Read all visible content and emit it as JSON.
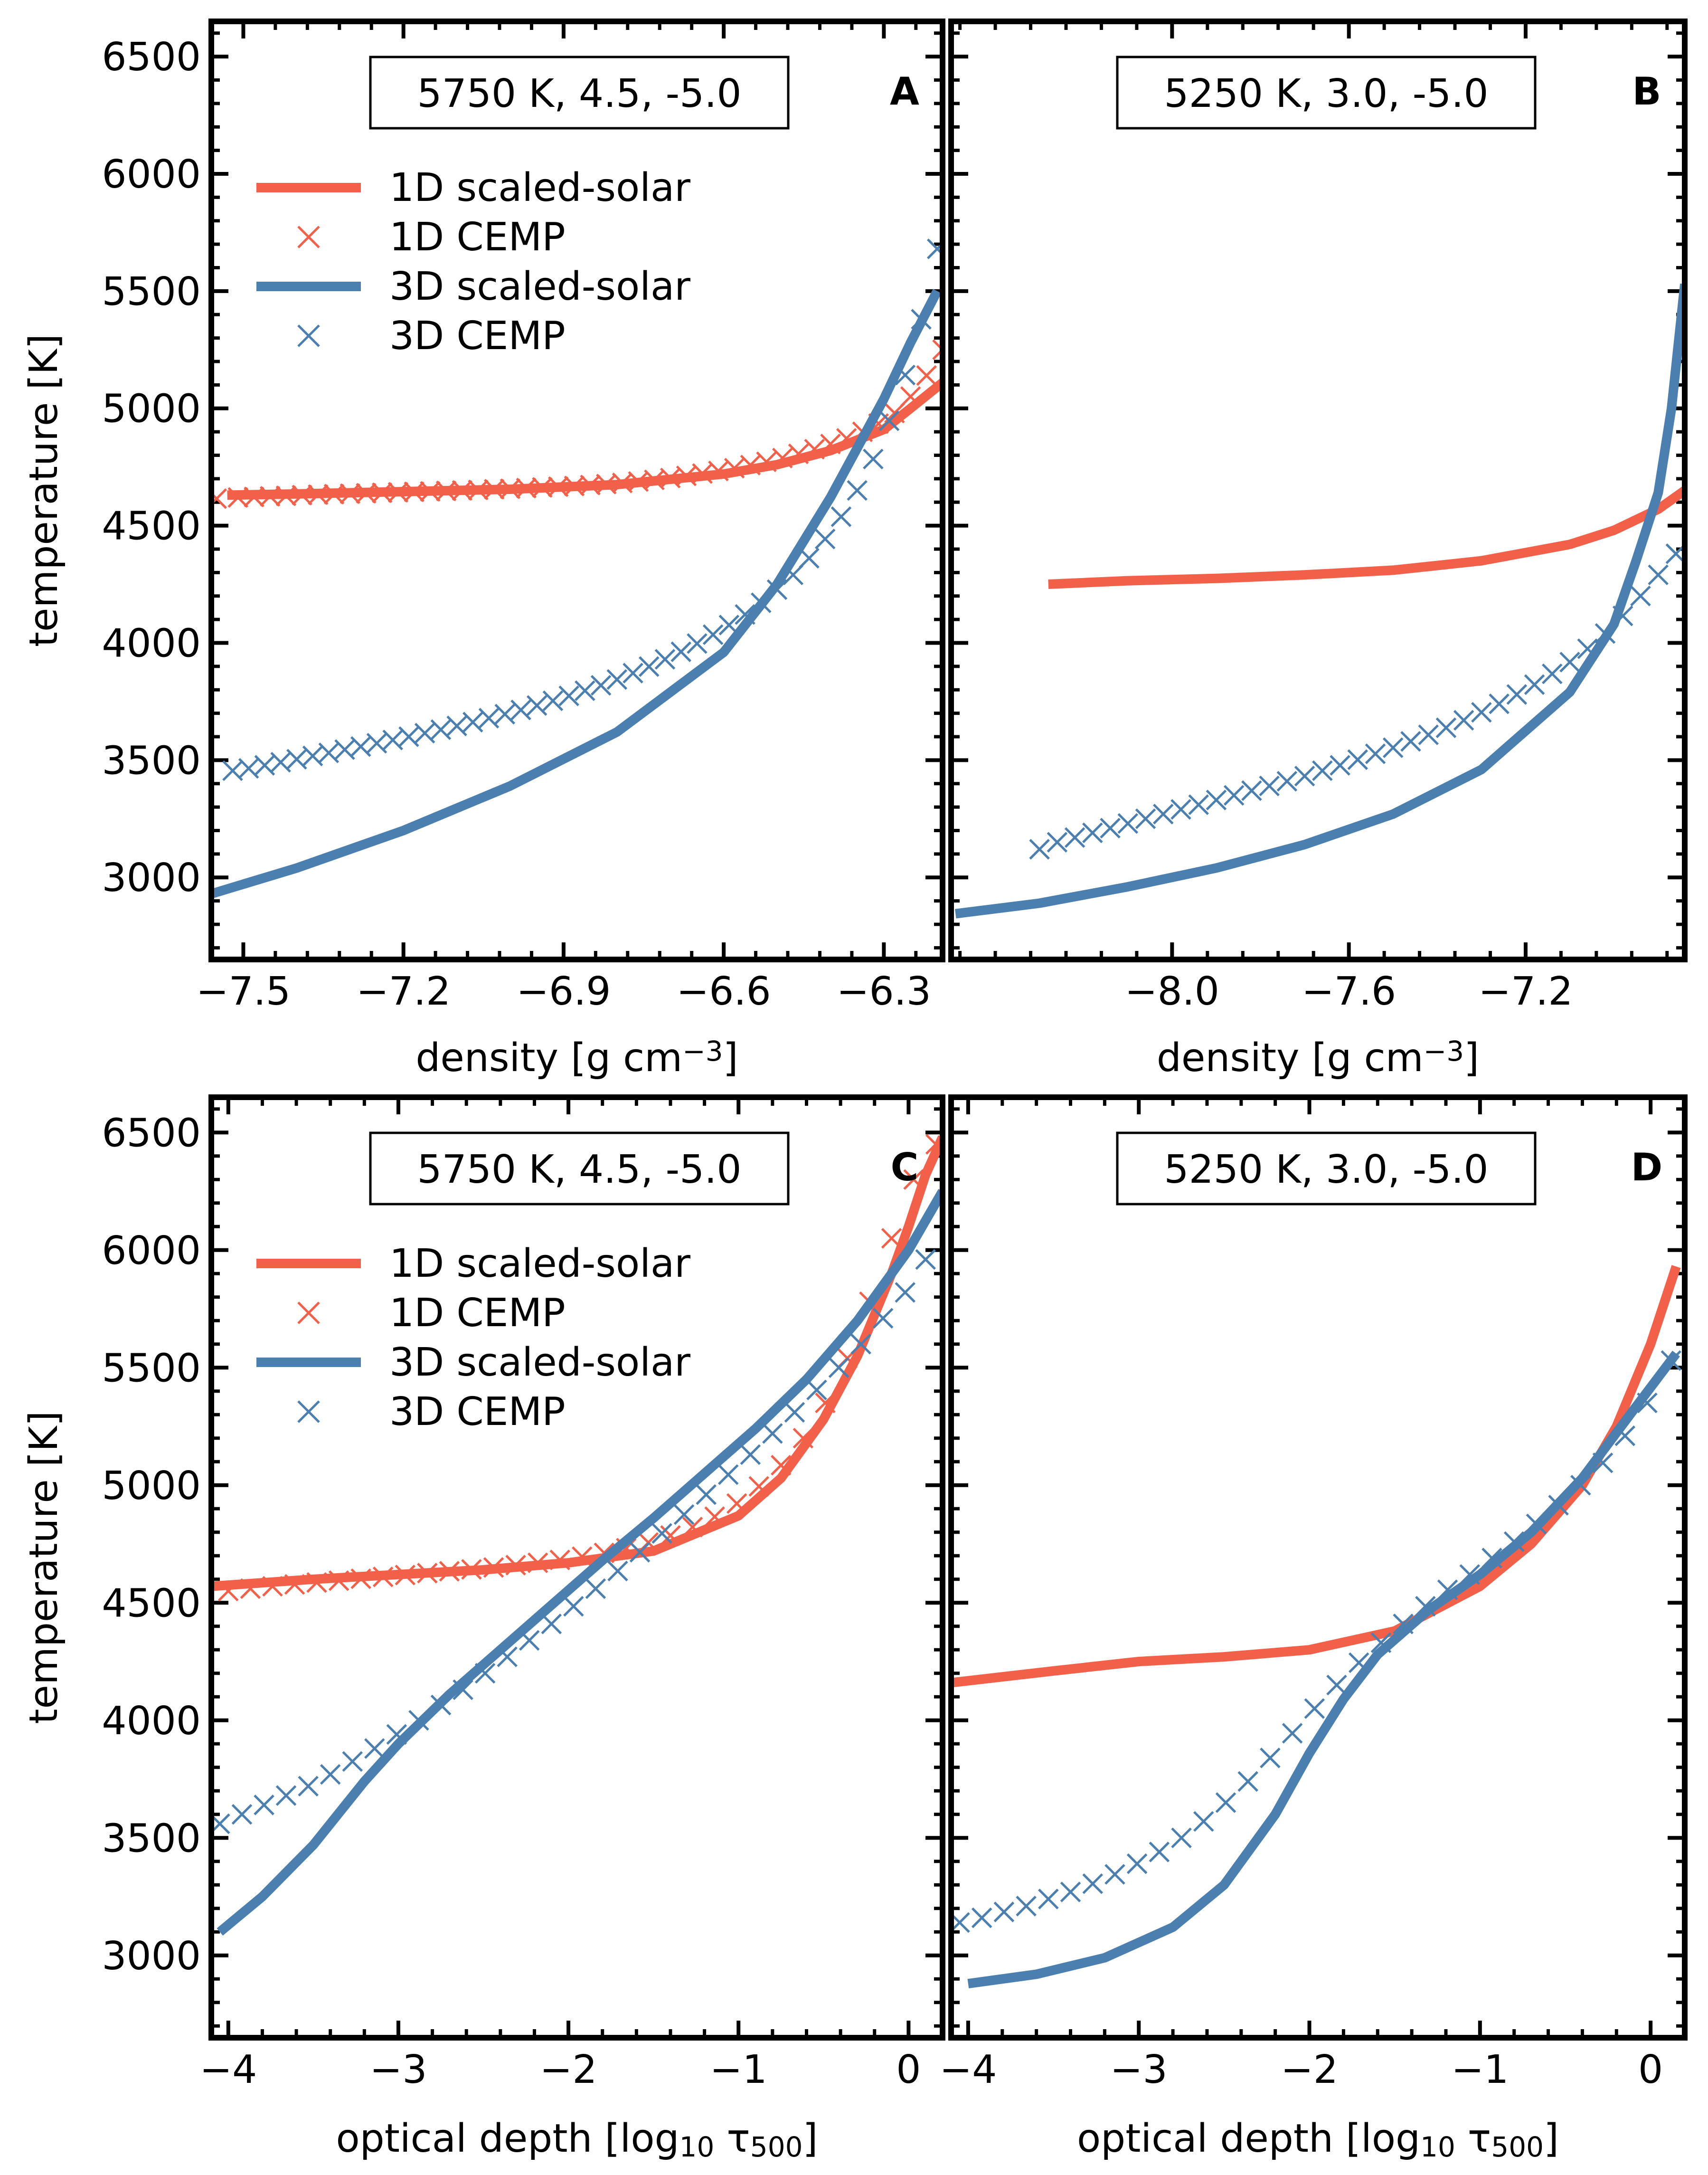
{
  "colors": {
    "one_d": "#f2604a",
    "three_d": "#4a7fb0",
    "axes": "#000000",
    "background": "#ffffff"
  },
  "chart_data": [
    {
      "panel_id": "A",
      "type": "line",
      "box_label": "5750 K, 4.5, -5.0",
      "panel_letter": "A",
      "xlabel": "density [g cm$^{-3}$]",
      "xlabel_parts": [
        "density [g cm",
        "−3",
        "]"
      ],
      "ylabel": "temperature [K]",
      "xlim": [
        -7.56,
        -6.19
      ],
      "ylim": [
        2650,
        6650
      ],
      "xticks": [
        -7.5,
        -7.2,
        -6.9,
        -6.6,
        -6.3
      ],
      "xtick_labels": [
        "−7.5",
        "−7.2",
        "−6.9",
        "−6.6",
        "−6.3"
      ],
      "yticks": [
        3000,
        3500,
        4000,
        4500,
        5000,
        5500,
        6000,
        6500
      ],
      "ytick_labels": [
        "3000",
        "3500",
        "4000",
        "4500",
        "5000",
        "5500",
        "6000",
        "6500"
      ],
      "legend": {
        "position": "upper-left",
        "entries": [
          "1D scaled-solar",
          "1D CEMP",
          "3D scaled-solar",
          "3D CEMP"
        ]
      },
      "series": [
        {
          "name": "1D scaled-solar",
          "style": "line",
          "color": "one_d",
          "x": [
            -7.53,
            -7.4,
            -7.2,
            -7.0,
            -6.8,
            -6.6,
            -6.5,
            -6.4,
            -6.3,
            -6.25,
            -6.19
          ],
          "y": [
            4630,
            4635,
            4645,
            4655,
            4675,
            4720,
            4760,
            4820,
            4910,
            5000,
            5110
          ]
        },
        {
          "name": "1D CEMP",
          "style": "marker",
          "color": "one_d",
          "x": [
            -7.55,
            -7.51,
            -7.48,
            -7.45,
            -7.42,
            -7.39,
            -7.36,
            -7.33,
            -7.3,
            -7.27,
            -7.24,
            -7.21,
            -7.18,
            -7.15,
            -7.12,
            -7.09,
            -7.06,
            -7.03,
            -7.0,
            -6.97,
            -6.94,
            -6.91,
            -6.88,
            -6.85,
            -6.82,
            -6.79,
            -6.76,
            -6.73,
            -6.7,
            -6.67,
            -6.64,
            -6.61,
            -6.58,
            -6.55,
            -6.52,
            -6.49,
            -6.46,
            -6.43,
            -6.4,
            -6.37,
            -6.34,
            -6.31,
            -6.28,
            -6.25,
            -6.22,
            -6.19
          ],
          "y": [
            4615,
            4620,
            4622,
            4625,
            4627,
            4630,
            4632,
            4634,
            4636,
            4638,
            4640,
            4642,
            4644,
            4646,
            4648,
            4650,
            4652,
            4655,
            4657,
            4660,
            4663,
            4666,
            4669,
            4673,
            4677,
            4682,
            4688,
            4695,
            4703,
            4712,
            4722,
            4733,
            4745,
            4758,
            4772,
            4788,
            4806,
            4826,
            4848,
            4872,
            4900,
            4935,
            4980,
            5050,
            5140,
            5250
          ]
        },
        {
          "name": "3D scaled-solar",
          "style": "line",
          "color": "three_d",
          "x": [
            -7.56,
            -7.4,
            -7.2,
            -7.0,
            -6.8,
            -6.6,
            -6.5,
            -6.4,
            -6.3,
            -6.25,
            -6.2
          ],
          "y": [
            2930,
            3040,
            3200,
            3390,
            3620,
            3960,
            4250,
            4620,
            5040,
            5280,
            5500
          ]
        },
        {
          "name": "3D CEMP",
          "style": "marker",
          "color": "three_d",
          "x": [
            -7.52,
            -7.49,
            -7.46,
            -7.43,
            -7.4,
            -7.37,
            -7.34,
            -7.31,
            -7.28,
            -7.25,
            -7.22,
            -7.19,
            -7.16,
            -7.13,
            -7.1,
            -7.07,
            -7.04,
            -7.01,
            -6.98,
            -6.95,
            -6.92,
            -6.89,
            -6.86,
            -6.83,
            -6.8,
            -6.77,
            -6.74,
            -6.71,
            -6.68,
            -6.65,
            -6.62,
            -6.59,
            -6.56,
            -6.53,
            -6.5,
            -6.47,
            -6.44,
            -6.41,
            -6.38,
            -6.35,
            -6.32,
            -6.29,
            -6.26,
            -6.23,
            -6.2
          ],
          "y": [
            3455,
            3465,
            3478,
            3491,
            3504,
            3518,
            3531,
            3545,
            3558,
            3572,
            3586,
            3600,
            3615,
            3630,
            3646,
            3662,
            3679,
            3696,
            3714,
            3733,
            3753,
            3774,
            3796,
            3819,
            3844,
            3871,
            3899,
            3930,
            3962,
            3997,
            4035,
            4076,
            4121,
            4171,
            4227,
            4290,
            4361,
            4443,
            4538,
            4650,
            4784,
            4947,
            5142,
            5380,
            5680
          ]
        }
      ]
    },
    {
      "panel_id": "B",
      "type": "line",
      "box_label": "5250 K, 3.0, -5.0",
      "panel_letter": "B",
      "xlabel": "density [g cm$^{-3}$]",
      "xlabel_parts": [
        "density [g cm",
        "−3",
        "]"
      ],
      "ylabel": "",
      "xlim": [
        -8.5,
        -6.84
      ],
      "ylim": [
        2650,
        6650
      ],
      "xticks": [
        -8.0,
        -7.6,
        -7.2
      ],
      "xtick_labels": [
        "−8.0",
        "−7.6",
        "−7.2"
      ],
      "yticks": [
        3000,
        3500,
        4000,
        4500,
        5000,
        5500,
        6000,
        6500
      ],
      "ytick_labels": [],
      "series": [
        {
          "name": "1D scaled-solar",
          "style": "line",
          "color": "one_d",
          "x": [
            -8.28,
            -8.1,
            -7.9,
            -7.7,
            -7.5,
            -7.3,
            -7.1,
            -7.0,
            -6.9,
            -6.84
          ],
          "y": [
            4250,
            4265,
            4275,
            4290,
            4310,
            4350,
            4420,
            4480,
            4570,
            4650
          ]
        },
        {
          "name": "1D CEMP",
          "style": "hidden",
          "color": "one_d",
          "x": [],
          "y": []
        },
        {
          "name": "3D scaled-solar",
          "style": "line",
          "color": "three_d",
          "x": [
            -8.49,
            -8.3,
            -8.1,
            -7.9,
            -7.7,
            -7.5,
            -7.3,
            -7.1,
            -7.0,
            -6.95,
            -6.9,
            -6.87,
            -6.84
          ],
          "y": [
            2845,
            2890,
            2960,
            3040,
            3140,
            3270,
            3460,
            3790,
            4080,
            4350,
            4640,
            5000,
            5530
          ]
        },
        {
          "name": "3D CEMP",
          "style": "marker",
          "color": "three_d",
          "x": [
            -8.3,
            -8.26,
            -8.22,
            -8.18,
            -8.14,
            -8.1,
            -8.06,
            -8.02,
            -7.98,
            -7.94,
            -7.9,
            -7.86,
            -7.82,
            -7.78,
            -7.74,
            -7.7,
            -7.66,
            -7.62,
            -7.58,
            -7.54,
            -7.5,
            -7.46,
            -7.42,
            -7.38,
            -7.34,
            -7.3,
            -7.26,
            -7.22,
            -7.18,
            -7.14,
            -7.1,
            -7.06,
            -7.02,
            -6.98,
            -6.94,
            -6.9,
            -6.86
          ],
          "y": [
            3120,
            3150,
            3170,
            3190,
            3210,
            3230,
            3250,
            3270,
            3290,
            3310,
            3330,
            3350,
            3370,
            3390,
            3410,
            3432,
            3455,
            3478,
            3502,
            3527,
            3553,
            3580,
            3608,
            3638,
            3670,
            3704,
            3740,
            3780,
            3822,
            3868,
            3918,
            3975,
            4040,
            4115,
            4200,
            4290,
            4380
          ]
        }
      ]
    },
    {
      "panel_id": "C",
      "type": "line",
      "box_label": "5750 K, 4.5, -5.0",
      "panel_letter": "C",
      "xlabel": "optical depth [log$_{10}$ τ$_{500}$]",
      "xlabel_parts": [
        "optical depth [log",
        "10",
        " τ",
        "500",
        "]"
      ],
      "ylabel": "temperature [K]",
      "xlim": [
        -4.1,
        0.2
      ],
      "ylim": [
        2650,
        6650
      ],
      "xticks": [
        -4,
        -3,
        -2,
        -1,
        0
      ],
      "xtick_labels": [
        "−4",
        "−3",
        "−2",
        "−1",
        "0"
      ],
      "yticks": [
        3000,
        3500,
        4000,
        4500,
        5000,
        5500,
        6000,
        6500
      ],
      "ytick_labels": [
        "3000",
        "3500",
        "4000",
        "4500",
        "5000",
        "5500",
        "6000",
        "6500"
      ],
      "legend": {
        "position": "upper-left",
        "entries": [
          "1D scaled-solar",
          "1D CEMP",
          "3D scaled-solar",
          "3D CEMP"
        ]
      },
      "series": [
        {
          "name": "1D scaled-solar",
          "style": "line",
          "color": "one_d",
          "x": [
            -4.1,
            -3.5,
            -3.0,
            -2.5,
            -2.0,
            -1.5,
            -1.0,
            -0.75,
            -0.5,
            -0.3,
            -0.1,
            0.0,
            0.1,
            0.2
          ],
          "y": [
            4570,
            4600,
            4620,
            4640,
            4670,
            4720,
            4870,
            5030,
            5280,
            5550,
            5900,
            6100,
            6320,
            6480
          ]
        },
        {
          "name": "1D CEMP",
          "style": "marker",
          "color": "one_d",
          "x": [
            -4.0,
            -3.87,
            -3.74,
            -3.61,
            -3.48,
            -3.35,
            -3.22,
            -3.09,
            -2.96,
            -2.83,
            -2.7,
            -2.57,
            -2.44,
            -2.31,
            -2.18,
            -2.05,
            -1.92,
            -1.79,
            -1.66,
            -1.53,
            -1.4,
            -1.27,
            -1.14,
            -1.01,
            -0.88,
            -0.75,
            -0.62,
            -0.49,
            -0.36,
            -0.23,
            -0.1,
            0.03,
            0.16
          ],
          "y": [
            4550,
            4560,
            4570,
            4578,
            4586,
            4594,
            4602,
            4610,
            4618,
            4626,
            4634,
            4642,
            4650,
            4660,
            4670,
            4682,
            4696,
            4712,
            4732,
            4756,
            4786,
            4822,
            4866,
            4922,
            4995,
            5085,
            5200,
            5350,
            5540,
            5780,
            6050,
            6300,
            6450
          ]
        },
        {
          "name": "3D scaled-solar",
          "style": "line",
          "color": "three_d",
          "x": [
            -4.05,
            -3.8,
            -3.5,
            -3.2,
            -3.0,
            -2.7,
            -2.4,
            -2.1,
            -1.8,
            -1.5,
            -1.2,
            -0.9,
            -0.6,
            -0.3,
            0.0,
            0.2
          ],
          "y": [
            3100,
            3250,
            3470,
            3740,
            3900,
            4110,
            4300,
            4490,
            4680,
            4860,
            5050,
            5240,
            5450,
            5700,
            6000,
            6250
          ]
        },
        {
          "name": "3D CEMP",
          "style": "marker",
          "color": "three_d",
          "x": [
            -4.05,
            -3.92,
            -3.79,
            -3.66,
            -3.53,
            -3.4,
            -3.27,
            -3.14,
            -3.01,
            -2.88,
            -2.75,
            -2.62,
            -2.49,
            -2.36,
            -2.23,
            -2.1,
            -1.97,
            -1.84,
            -1.71,
            -1.58,
            -1.45,
            -1.32,
            -1.19,
            -1.06,
            -0.93,
            -0.8,
            -0.67,
            -0.54,
            -0.41,
            -0.28,
            -0.15,
            -0.02,
            0.1
          ],
          "y": [
            3560,
            3600,
            3640,
            3680,
            3720,
            3770,
            3825,
            3880,
            3940,
            4000,
            4065,
            4130,
            4200,
            4270,
            4340,
            4410,
            4485,
            4560,
            4635,
            4715,
            4795,
            4875,
            4960,
            5045,
            5130,
            5220,
            5310,
            5405,
            5500,
            5600,
            5710,
            5820,
            5960
          ]
        }
      ]
    },
    {
      "panel_id": "D",
      "type": "line",
      "box_label": "5250 K, 3.0, -5.0",
      "panel_letter": "D",
      "xlabel": "optical depth [log$_{10}$ τ$_{500}$]",
      "xlabel_parts": [
        "optical depth [log",
        "10",
        " τ",
        "500",
        "]"
      ],
      "ylabel": "",
      "xlim": [
        -4.1,
        0.2
      ],
      "ylim": [
        2650,
        6650
      ],
      "xticks": [
        -4,
        -3,
        -2,
        -1,
        0
      ],
      "xtick_labels": [
        "−4",
        "−3",
        "−2",
        "−1",
        "0"
      ],
      "yticks": [
        3000,
        3500,
        4000,
        4500,
        5000,
        5500,
        6000,
        6500
      ],
      "ytick_labels": [],
      "series": [
        {
          "name": "1D scaled-solar",
          "style": "line",
          "color": "one_d",
          "x": [
            -4.1,
            -3.5,
            -3.0,
            -2.5,
            -2.0,
            -1.5,
            -1.0,
            -0.7,
            -0.4,
            -0.2,
            0.0,
            0.15
          ],
          "y": [
            4160,
            4210,
            4250,
            4270,
            4300,
            4380,
            4570,
            4750,
            5000,
            5250,
            5600,
            5930
          ]
        },
        {
          "name": "1D CEMP",
          "style": "hidden",
          "color": "one_d",
          "x": [],
          "y": []
        },
        {
          "name": "3D scaled-solar",
          "style": "line",
          "color": "three_d",
          "x": [
            -4.0,
            -3.6,
            -3.2,
            -2.8,
            -2.5,
            -2.2,
            -2.0,
            -1.8,
            -1.6,
            -1.3,
            -1.0,
            -0.7,
            -0.4,
            -0.1,
            0.15
          ],
          "y": [
            2880,
            2920,
            2990,
            3120,
            3300,
            3600,
            3860,
            4090,
            4280,
            4470,
            4620,
            4800,
            5030,
            5320,
            5560
          ]
        },
        {
          "name": "3D CEMP",
          "style": "marker",
          "color": "three_d",
          "x": [
            -4.05,
            -3.92,
            -3.79,
            -3.66,
            -3.53,
            -3.4,
            -3.27,
            -3.14,
            -3.01,
            -2.88,
            -2.75,
            -2.62,
            -2.49,
            -2.36,
            -2.23,
            -2.1,
            -1.97,
            -1.84,
            -1.71,
            -1.58,
            -1.45,
            -1.32,
            -1.19,
            -1.06,
            -0.93,
            -0.8,
            -0.67,
            -0.54,
            -0.41,
            -0.28,
            -0.15,
            -0.02,
            0.12
          ],
          "y": [
            3140,
            3160,
            3185,
            3210,
            3240,
            3270,
            3305,
            3345,
            3390,
            3440,
            3500,
            3570,
            3650,
            3740,
            3840,
            3945,
            4050,
            4150,
            4245,
            4330,
            4410,
            4485,
            4555,
            4620,
            4690,
            4760,
            4835,
            4915,
            5000,
            5095,
            5210,
            5350,
            5530
          ]
        }
      ]
    }
  ]
}
